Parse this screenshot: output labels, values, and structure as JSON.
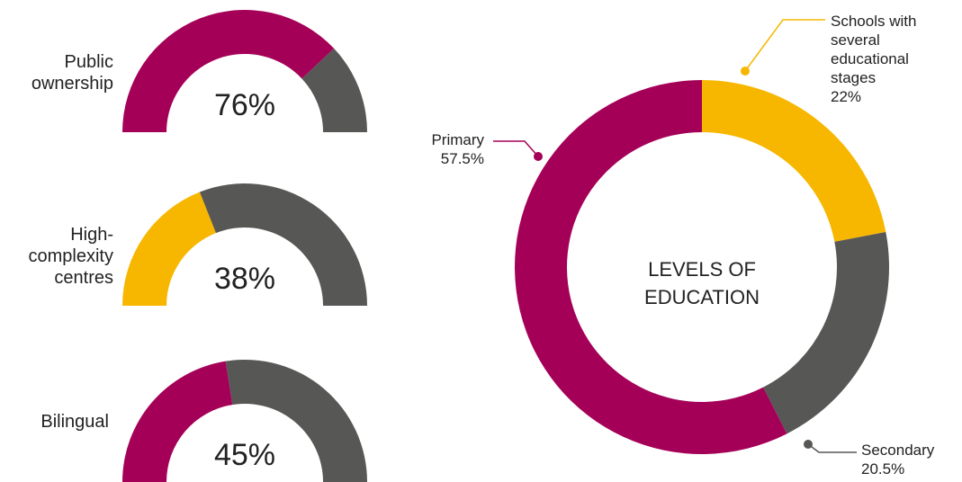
{
  "colors": {
    "maroon": "#A50057",
    "yellow": "#F7B700",
    "gray": "#575756"
  },
  "chart_data": [
    {
      "type": "gauge",
      "gauges": [
        {
          "label_lines": [
            "Public",
            "ownership"
          ],
          "value": 76,
          "value_text": "76%",
          "color": "#A50057"
        },
        {
          "label_lines": [
            "High-",
            "complexity",
            "centres"
          ],
          "value": 38,
          "value_text": "38%",
          "color": "#F7B700"
        },
        {
          "label_lines": [
            "Bilingual"
          ],
          "value": 45,
          "value_text": "45%",
          "color": "#A50057"
        }
      ],
      "remainder_color": "#575756"
    },
    {
      "type": "pie",
      "title_lines": [
        "LEVELS OF",
        "EDUCATION"
      ],
      "slices": [
        {
          "label_lines": [
            "Schools with",
            "several",
            "educational",
            "stages"
          ],
          "value": 22,
          "value_text": "22%",
          "color": "#F7B700"
        },
        {
          "label_lines": [
            "Secondary"
          ],
          "value": 20.5,
          "value_text": "20.5%",
          "color": "#575756"
        },
        {
          "label_lines": [
            "Primary"
          ],
          "value": 57.5,
          "value_text": "57.5%",
          "color": "#A50057"
        }
      ]
    }
  ]
}
